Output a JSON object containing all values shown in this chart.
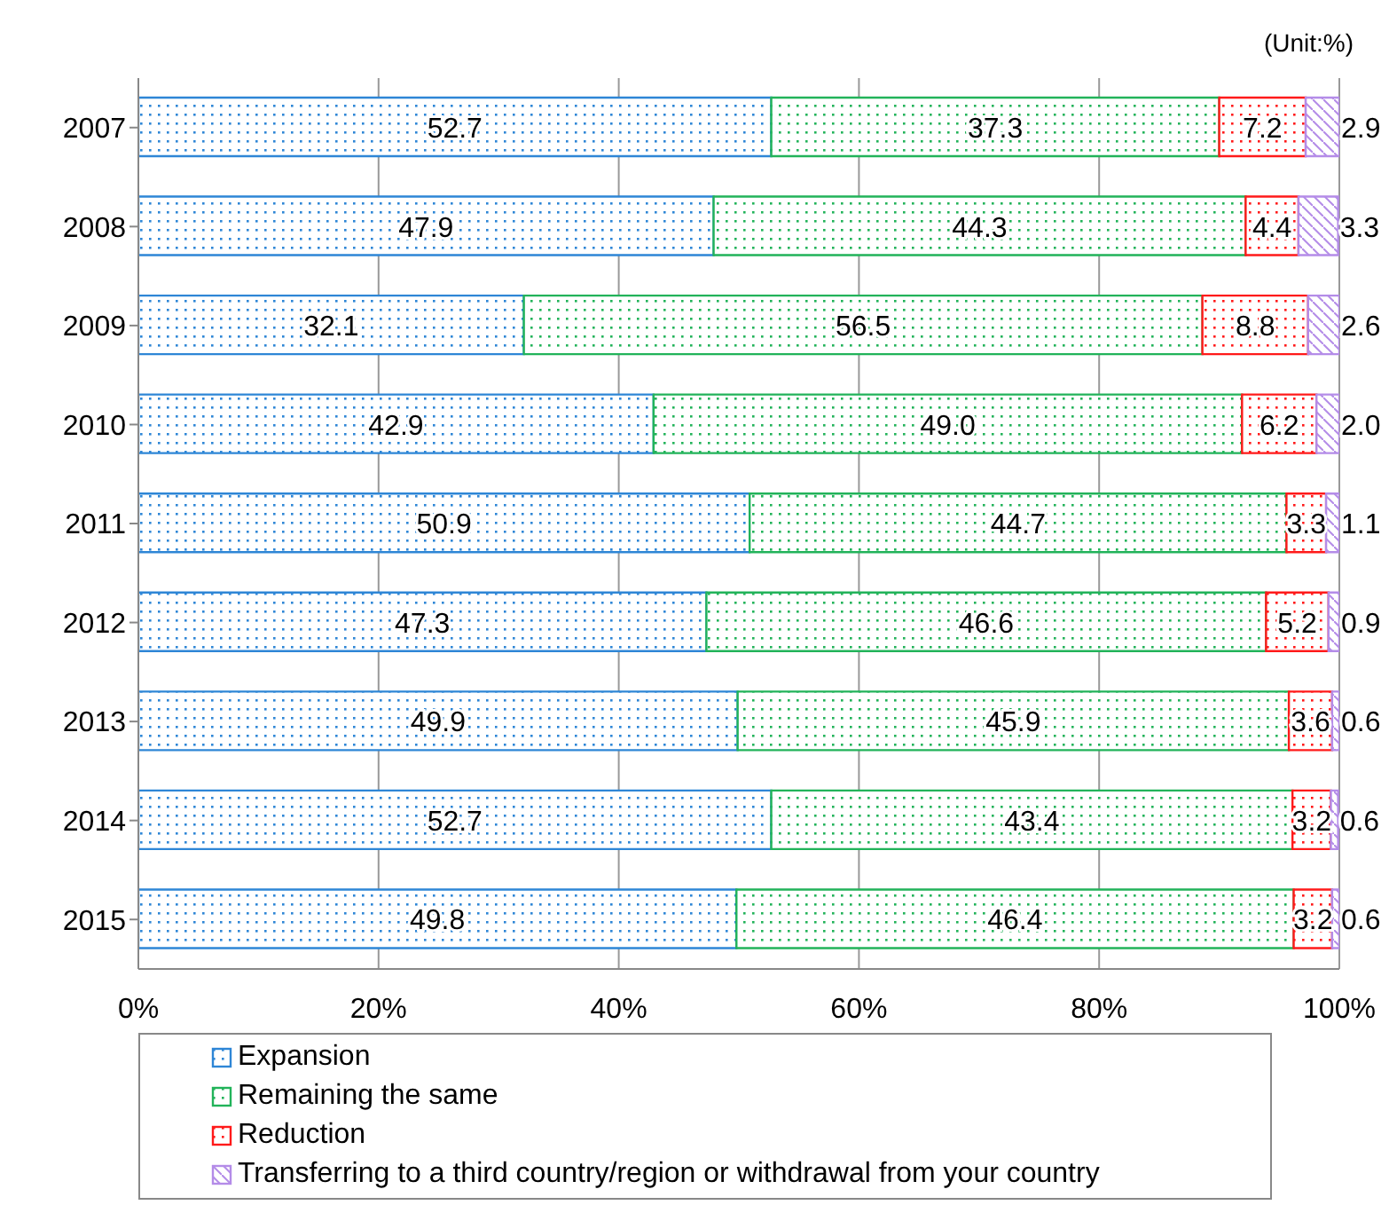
{
  "chart_data": {
    "type": "bar",
    "orientation": "horizontal",
    "stacked": true,
    "annotations": [
      "(Unit:%)"
    ],
    "categories": [
      "2007",
      "2008",
      "2009",
      "2010",
      "2011",
      "2012",
      "2013",
      "2014",
      "2015"
    ],
    "series": [
      {
        "name": "Expansion",
        "color": "#2e86d6",
        "values": [
          52.7,
          47.9,
          32.1,
          42.9,
          50.9,
          47.3,
          49.9,
          52.7,
          49.8
        ],
        "value_labels": [
          "52.7",
          "47.9",
          "32.1",
          "42.9",
          "50.9",
          "47.3",
          "49.9",
          "52.7",
          "49.8"
        ]
      },
      {
        "name": "Remaining the same",
        "color": "#22b35a",
        "values": [
          37.3,
          44.3,
          56.5,
          49.0,
          44.7,
          46.6,
          45.9,
          43.4,
          46.4
        ],
        "value_labels": [
          "37.3",
          "44.3",
          "56.5",
          "49.0",
          "44.7",
          "46.6",
          "45.9",
          "43.4",
          "46.4"
        ]
      },
      {
        "name": "Reduction",
        "color": "#ff1a1a",
        "values": [
          7.2,
          4.4,
          8.8,
          6.2,
          3.3,
          5.2,
          3.6,
          3.2,
          3.2
        ],
        "value_labels": [
          "7.2",
          "4.4",
          "8.8",
          "6.2",
          "3.3",
          "5.2",
          "3.6",
          "3.2",
          "3.2"
        ]
      },
      {
        "name": "Transferring to a third country/region or withdrawal from your country",
        "color": "#b48ce8",
        "values": [
          2.9,
          3.3,
          2.6,
          2.0,
          1.1,
          0.9,
          0.6,
          0.6,
          0.6
        ],
        "value_labels": [
          "2.9",
          "3.3",
          "2.6",
          "2.0",
          "1.1",
          "0.9",
          "0.6",
          "0.6",
          "0.6"
        ]
      }
    ],
    "xlim": [
      0,
      100
    ],
    "xticks": [
      {
        "value": 0,
        "label": "0%"
      },
      {
        "value": 20,
        "label": "20%"
      },
      {
        "value": 40,
        "label": "40%"
      },
      {
        "value": 60,
        "label": "60%"
      },
      {
        "value": 80,
        "label": "80%"
      },
      {
        "value": 100,
        "label": "100%"
      }
    ],
    "grid": "x",
    "legend": "bottom"
  }
}
